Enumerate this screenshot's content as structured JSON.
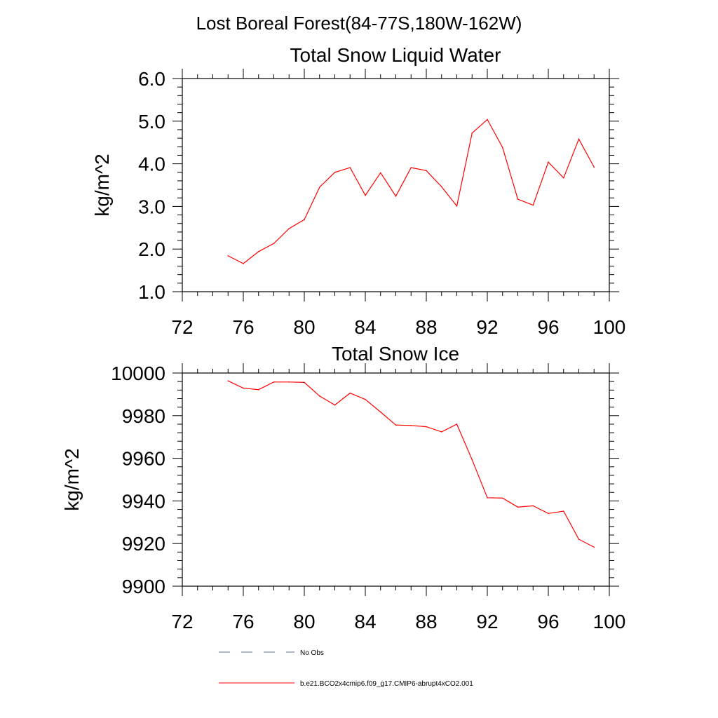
{
  "figure": {
    "title": "Lost Boreal Forest(84-77S,180W-162W)"
  },
  "chart_data": [
    {
      "type": "line",
      "title": "Total Snow Liquid Water",
      "ylabel": "kg/m^2",
      "xlabel": "",
      "xlim": [
        72,
        100
      ],
      "ylim": [
        1.0,
        6.0
      ],
      "x_ticks": [
        72,
        76,
        80,
        84,
        88,
        92,
        96,
        100
      ],
      "y_ticks": [
        "1.0",
        "2.0",
        "3.0",
        "4.0",
        "5.0",
        "6.0"
      ],
      "grid": false,
      "series": [
        {
          "name": "b.e21.BCO2x4cmip6.f09_g17.CMIP6-abrupt4xCO2.001",
          "color": "#ff0000",
          "x": [
            75,
            76,
            77,
            78,
            79,
            80,
            81,
            82,
            83,
            84,
            85,
            86,
            87,
            88,
            89,
            90,
            91,
            92,
            93,
            94,
            95,
            96,
            97,
            98,
            99
          ],
          "y": [
            1.84,
            1.66,
            1.94,
            2.13,
            2.48,
            2.69,
            3.45,
            3.8,
            3.91,
            3.26,
            3.79,
            3.24,
            3.91,
            3.84,
            3.46,
            3.01,
            4.72,
            5.04,
            4.38,
            3.17,
            3.03,
            4.04,
            3.67,
            4.58,
            3.92
          ]
        }
      ]
    },
    {
      "type": "line",
      "title": "Total Snow Ice",
      "ylabel": "kg/m^2",
      "xlabel": "",
      "xlim": [
        72,
        100
      ],
      "ylim": [
        9900,
        10000
      ],
      "x_ticks": [
        72,
        76,
        80,
        84,
        88,
        92,
        96,
        100
      ],
      "y_ticks": [
        "9900",
        "9920",
        "9940",
        "9960",
        "9980",
        "10000"
      ],
      "grid": false,
      "series": [
        {
          "name": "b.e21.BCO2x4cmip6.f09_g17.CMIP6-abrupt4xCO2.001",
          "color": "#ff0000",
          "x": [
            75,
            76,
            77,
            78,
            79,
            80,
            81,
            82,
            83,
            84,
            85,
            86,
            87,
            88,
            89,
            90,
            91,
            92,
            93,
            94,
            95,
            96,
            97,
            98,
            99
          ],
          "y": [
            9996.3,
            9992.9,
            9992.2,
            9995.8,
            9995.8,
            9995.6,
            9989.2,
            9985.0,
            9990.6,
            9987.6,
            9981.7,
            9975.6,
            9975.4,
            9974.8,
            9972.4,
            9976.0,
            9959.3,
            9941.5,
            9941.3,
            9937.1,
            9937.7,
            9934.1,
            9935.2,
            9922.0,
            9918.3
          ]
        }
      ]
    }
  ],
  "legend": {
    "placement": "bottom",
    "items": [
      {
        "label": "No Obs",
        "color": "#5a6e9b",
        "dash": "dashed"
      },
      {
        "label": "b.e21.BCO2x4cmip6.f09_g17.CMIP6-abrupt4xCO2.001",
        "color": "#ff0000",
        "dash": "solid"
      }
    ]
  }
}
